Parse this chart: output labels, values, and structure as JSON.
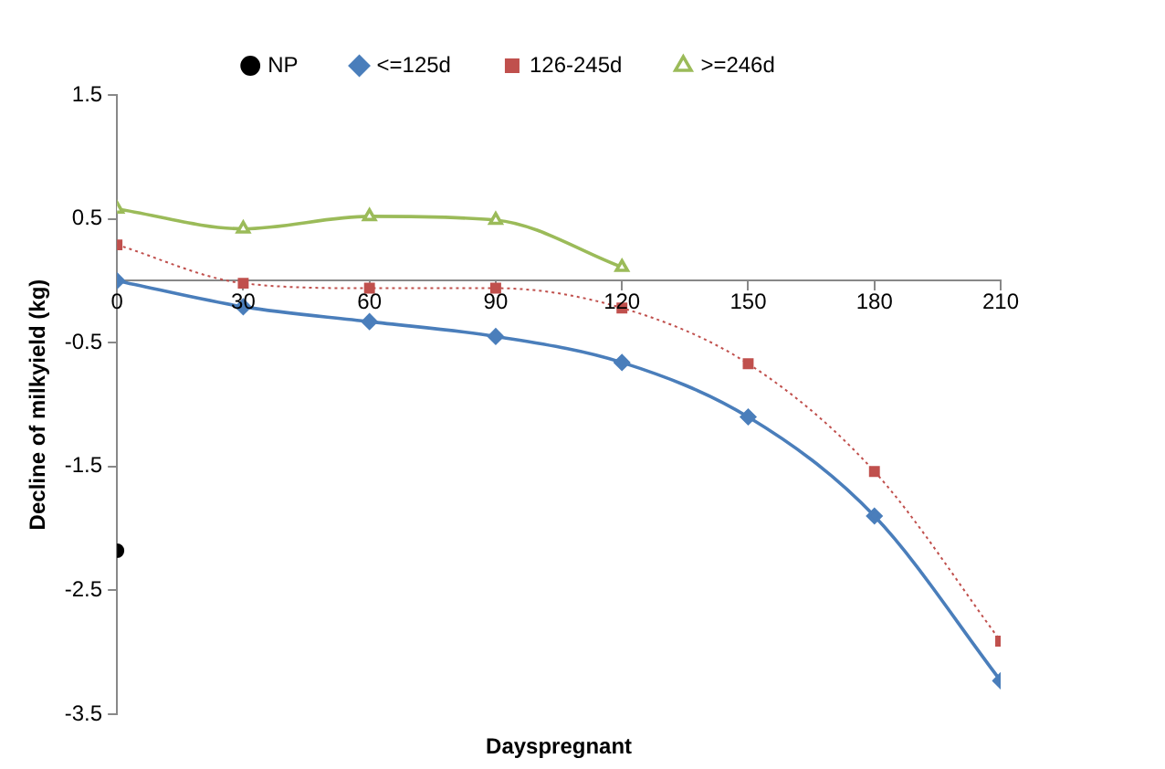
{
  "chart_data": {
    "type": "line",
    "xlabel": "Dayspregnant",
    "ylabel": "Decline of milkyield (kg)",
    "xlim": [
      0,
      210
    ],
    "xticks": [
      0,
      30,
      60,
      90,
      120,
      150,
      180,
      210
    ],
    "ylim": [
      -3.5,
      1.5
    ],
    "yticks": [
      -3.5,
      -2.5,
      -1.5,
      -0.5,
      0.5,
      1.5
    ],
    "grid": false,
    "legend": "top",
    "series": [
      {
        "name": "NP",
        "type": "scatter",
        "marker": "circle",
        "color": "#000000",
        "x": [
          0
        ],
        "values": [
          -2.18
        ]
      },
      {
        "name": "<=125d",
        "marker": "diamond",
        "line_style": "solid",
        "color": "#4a7ebb",
        "x": [
          0,
          30,
          60,
          90,
          120,
          150,
          180,
          210
        ],
        "values": [
          0.0,
          -0.21,
          -0.33,
          -0.45,
          -0.66,
          -1.1,
          -1.9,
          -3.23
        ]
      },
      {
        "name": "126-245d",
        "marker": "square",
        "line_style": "dotted",
        "color": "#c0504d",
        "x": [
          0,
          30,
          60,
          90,
          120,
          150,
          180,
          210
        ],
        "values": [
          0.29,
          -0.02,
          -0.06,
          -0.06,
          -0.22,
          -0.67,
          -1.54,
          -2.91
        ]
      },
      {
        "name": ">=246d",
        "marker": "triangle",
        "line_style": "solid",
        "color": "#9bbb59",
        "x": [
          0,
          30,
          60,
          90,
          120
        ],
        "values": [
          0.58,
          0.42,
          0.52,
          0.49,
          0.11
        ]
      }
    ]
  }
}
